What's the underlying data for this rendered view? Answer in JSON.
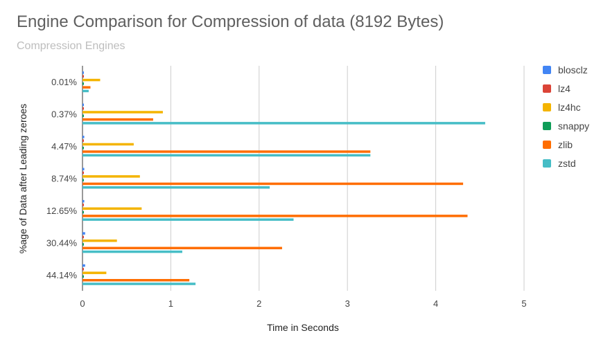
{
  "title": "Engine Comparison for Compression of data (8192 Bytes)",
  "subtitle": "Compression Engines",
  "chart_data": {
    "type": "bar",
    "orientation": "horizontal",
    "title": "Engine Comparison for Compression of data (8192 Bytes)",
    "subtitle": "Compression Engines",
    "xlabel": "Time in Seconds",
    "ylabel": "%age of Data after Leading zeroes",
    "xlim": [
      0,
      5
    ],
    "xticks": [
      "0",
      "1",
      "2",
      "3",
      "4",
      "5"
    ],
    "grid": true,
    "legend_position": "right",
    "categories": [
      "0.01%",
      "0.37%",
      "4.47%",
      "8.74%",
      "12.65%",
      "30.44%",
      "44.14%"
    ],
    "series": [
      {
        "name": "blosclz",
        "color": "#4285f4",
        "values": [
          0.01,
          0.01,
          0.02,
          0.02,
          0.02,
          0.03,
          0.03
        ]
      },
      {
        "name": "lz4",
        "color": "#db4437",
        "values": [
          0.01,
          0.01,
          0.01,
          0.01,
          0.01,
          0.01,
          0.01
        ]
      },
      {
        "name": "lz4hc",
        "color": "#f4b400",
        "values": [
          0.2,
          0.91,
          0.58,
          0.65,
          0.67,
          0.39,
          0.27
        ]
      },
      {
        "name": "snappy",
        "color": "#0f9d58",
        "values": [
          0.01,
          0.01,
          0.01,
          0.01,
          0.01,
          0.01,
          0.01
        ]
      },
      {
        "name": "zlib",
        "color": "#ff6d00",
        "values": [
          0.09,
          0.8,
          3.26,
          4.31,
          4.36,
          2.26,
          1.21
        ]
      },
      {
        "name": "zstd",
        "color": "#46bdc6",
        "values": [
          0.07,
          4.56,
          3.26,
          2.12,
          2.39,
          1.13,
          1.28
        ]
      }
    ]
  }
}
